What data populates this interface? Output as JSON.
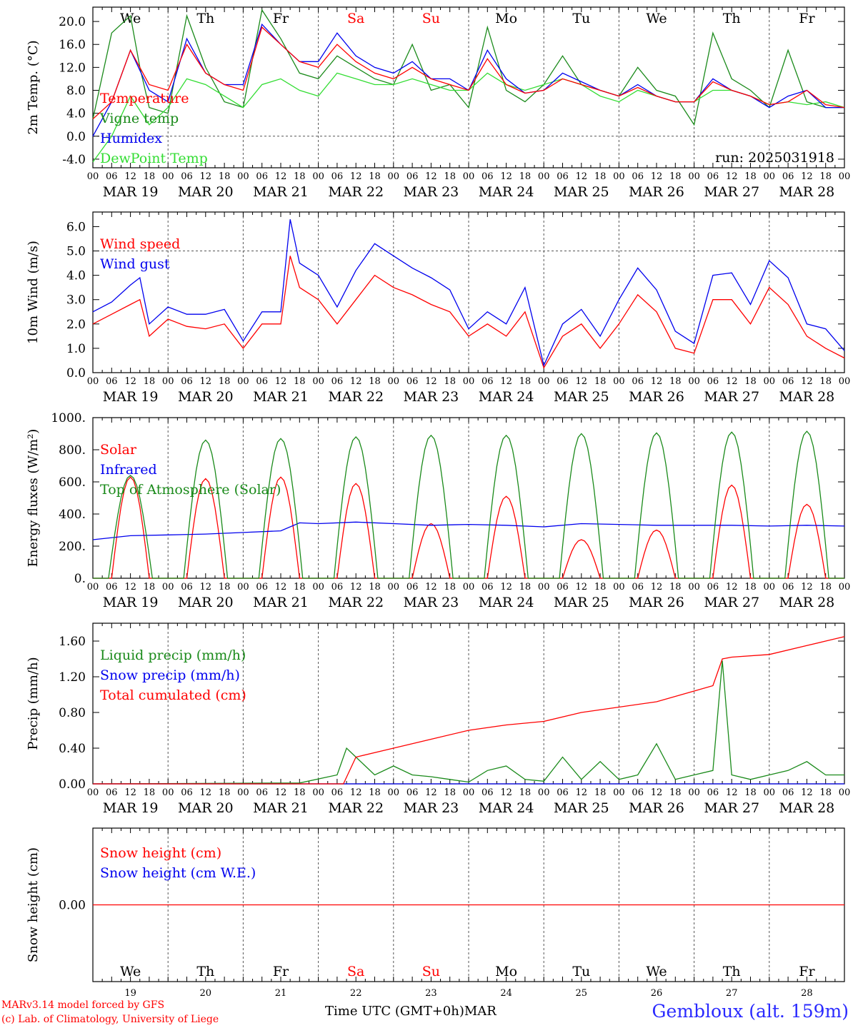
{
  "chart_data": [
    {
      "id": "temp",
      "type": "line",
      "ylabel_html": "2m Temp. (°C)",
      "yticks": [
        "20.0",
        "16.0",
        "12.0",
        "8.0",
        "4.0",
        "0.0",
        "-4.0"
      ],
      "ytick_values": [
        20,
        16,
        12,
        8,
        4,
        0,
        -4
      ],
      "ylim": [
        -5.5,
        22.5
      ],
      "ref_lines": [
        0
      ],
      "run_label": "run: 2025031918",
      "day_labels": [
        {
          "label": "We",
          "color": "#000000"
        },
        {
          "label": "Th",
          "color": "#000000"
        },
        {
          "label": "Fr",
          "color": "#000000"
        },
        {
          "label": "Sa",
          "color": "#ff0000"
        },
        {
          "label": "Su",
          "color": "#ff0000"
        },
        {
          "label": "Mo",
          "color": "#000000"
        },
        {
          "label": "Tu",
          "color": "#000000"
        },
        {
          "label": "We",
          "color": "#000000"
        },
        {
          "label": "Th",
          "color": "#000000"
        },
        {
          "label": "Fr",
          "color": "#000000"
        }
      ],
      "series": [
        {
          "name": "Vigne temp",
          "color": "#1a8a1a",
          "x": [
            0,
            6,
            12,
            15,
            18,
            24,
            30,
            36,
            42,
            48,
            54,
            60,
            66,
            72,
            78,
            84,
            90,
            96,
            102,
            108,
            114,
            120,
            126,
            132,
            138,
            144,
            150,
            156,
            162,
            168,
            174,
            180,
            186,
            192,
            198,
            204,
            210,
            216,
            222,
            228,
            234,
            240
          ],
          "y": [
            3,
            18,
            21,
            12,
            5,
            4,
            21,
            12,
            6,
            5,
            22,
            17,
            11,
            10,
            14,
            12,
            10,
            9,
            16,
            8,
            9,
            5,
            19,
            8,
            6,
            9,
            14,
            9,
            8,
            7,
            12,
            8,
            7,
            2,
            18,
            10,
            8,
            5,
            15,
            6,
            5,
            5
          ]
        },
        {
          "name": "DewPoint Temp",
          "color": "#33dd33",
          "x": [
            0,
            6,
            12,
            18,
            24,
            30,
            36,
            42,
            48,
            54,
            60,
            66,
            72,
            78,
            84,
            90,
            96,
            102,
            108,
            114,
            120,
            126,
            132,
            138,
            144,
            150,
            156,
            162,
            168,
            174,
            180,
            186,
            192,
            198,
            204,
            210,
            216,
            222,
            228,
            234,
            240
          ],
          "y": [
            -4.5,
            0,
            7,
            2,
            5,
            10,
            9,
            7,
            5,
            9,
            10,
            8,
            7,
            11,
            10,
            9,
            9,
            10,
            9,
            8,
            8,
            11,
            9,
            8,
            9,
            10,
            9,
            7,
            6,
            8,
            7,
            6,
            6,
            8,
            8,
            7,
            5.5,
            6,
            5.5,
            6,
            5
          ]
        },
        {
          "name": "Humidex",
          "color": "#0000ee",
          "x": [
            0,
            6,
            12,
            18,
            24,
            30,
            36,
            42,
            48,
            54,
            60,
            66,
            72,
            78,
            84,
            90,
            96,
            102,
            108,
            114,
            120,
            126,
            132,
            138,
            144,
            150,
            156,
            162,
            168,
            174,
            180,
            186,
            192,
            198,
            204,
            210,
            216,
            222,
            228,
            234,
            240
          ],
          "y": [
            0,
            6,
            15,
            8,
            6,
            17,
            11,
            9,
            9,
            19.5,
            16,
            13,
            13,
            18,
            14,
            12,
            11,
            13,
            10,
            10,
            8,
            15,
            10,
            7.5,
            8,
            11,
            9.5,
            8,
            7,
            9,
            7,
            6,
            6,
            10,
            8,
            7,
            5,
            7,
            8,
            5,
            5
          ]
        },
        {
          "name": "Temperature",
          "color": "#ff0000",
          "x": [
            0,
            6,
            12,
            18,
            24,
            30,
            36,
            42,
            48,
            54,
            60,
            66,
            72,
            78,
            84,
            90,
            96,
            102,
            108,
            114,
            120,
            126,
            132,
            138,
            144,
            150,
            156,
            162,
            168,
            174,
            180,
            186,
            192,
            198,
            204,
            210,
            216,
            222,
            228,
            234,
            240
          ],
          "y": [
            3,
            6,
            15,
            9,
            8,
            16,
            11,
            9,
            8,
            19,
            16,
            13,
            12,
            16,
            13,
            11,
            10,
            12,
            10,
            9,
            8,
            13.5,
            9,
            7.5,
            8,
            10,
            9,
            8,
            7,
            8.5,
            7,
            6,
            6,
            9.5,
            8,
            7,
            5.5,
            6,
            8,
            5.5,
            5
          ]
        }
      ]
    },
    {
      "id": "wind",
      "type": "line",
      "ylabel_html": "10m Wind (m/s)",
      "yticks": [
        "6.0",
        "5.0",
        "4.0",
        "3.0",
        "2.0",
        "1.0",
        "0.0"
      ],
      "ytick_values": [
        6,
        5,
        4,
        3,
        2,
        1,
        0
      ],
      "ylim": [
        0,
        6.6
      ],
      "ref_lines": [
        5
      ],
      "series": [
        {
          "name": "Wind speed",
          "color": "#ff0000",
          "x": [
            0,
            6,
            12,
            15,
            18,
            24,
            30,
            36,
            42,
            48,
            54,
            60,
            63,
            66,
            72,
            78,
            84,
            90,
            96,
            102,
            108,
            114,
            120,
            126,
            132,
            138,
            144,
            150,
            156,
            162,
            168,
            174,
            180,
            186,
            192,
            198,
            204,
            210,
            216,
            222,
            228,
            234,
            240
          ],
          "y": [
            2.0,
            2.4,
            2.8,
            3.0,
            1.5,
            2.2,
            1.9,
            1.8,
            2.0,
            1.0,
            2.0,
            2.0,
            4.8,
            3.5,
            3.0,
            2.0,
            3.0,
            4.0,
            3.5,
            3.2,
            2.8,
            2.5,
            1.5,
            2.0,
            1.5,
            2.5,
            0.2,
            1.5,
            2.0,
            1.0,
            2.0,
            3.2,
            2.5,
            1.0,
            0.8,
            3.0,
            3.0,
            2.0,
            3.5,
            2.8,
            1.5,
            1.0,
            0.6
          ]
        },
        {
          "name": "Wind gust",
          "color": "#0000ee",
          "x": [
            0,
            6,
            12,
            15,
            18,
            24,
            30,
            36,
            42,
            48,
            54,
            60,
            63,
            66,
            72,
            78,
            84,
            90,
            96,
            102,
            108,
            114,
            120,
            126,
            132,
            138,
            144,
            150,
            156,
            162,
            168,
            174,
            180,
            186,
            192,
            198,
            204,
            210,
            216,
            222,
            228,
            234,
            240
          ],
          "y": [
            2.5,
            2.9,
            3.6,
            3.9,
            2.0,
            2.7,
            2.4,
            2.4,
            2.6,
            1.3,
            2.5,
            2.5,
            6.3,
            4.5,
            4.0,
            2.7,
            4.2,
            5.3,
            4.8,
            4.3,
            3.9,
            3.4,
            1.8,
            2.5,
            2.0,
            3.5,
            0.3,
            2.0,
            2.6,
            1.5,
            3.0,
            4.3,
            3.4,
            1.7,
            1.2,
            4.0,
            4.1,
            2.8,
            4.6,
            3.9,
            2.0,
            1.8,
            0.9
          ]
        }
      ]
    },
    {
      "id": "energy",
      "type": "line",
      "ylabel_html": "Energy fluxes (W/m²)",
      "yticks": [
        "1000.",
        "800.",
        "600.",
        "400.",
        "200.",
        "0."
      ],
      "ytick_values": [
        1000,
        800,
        600,
        400,
        200,
        0
      ],
      "ylim": [
        0,
        1000
      ],
      "ref_lines": [],
      "solar_peaks": [
        630,
        620,
        630,
        590,
        340,
        510,
        240,
        300,
        580,
        460
      ],
      "toa_peaks": [
        640,
        860,
        870,
        880,
        890,
        890,
        900,
        905,
        910,
        915
      ],
      "series": [
        {
          "name": "Solar",
          "color": "#ff0000"
        },
        {
          "name": "Infrared",
          "color": "#0000ee",
          "x": [
            0,
            12,
            24,
            36,
            48,
            60,
            66,
            72,
            84,
            96,
            108,
            120,
            132,
            144,
            156,
            168,
            180,
            192,
            204,
            216,
            228,
            240
          ],
          "y": [
            240,
            265,
            270,
            275,
            285,
            295,
            345,
            340,
            350,
            340,
            330,
            335,
            330,
            320,
            340,
            335,
            330,
            330,
            330,
            325,
            330,
            325
          ]
        },
        {
          "name": "Top of Atmosphere (Solar)",
          "color": "#1a8a1a"
        }
      ]
    },
    {
      "id": "precip",
      "type": "line",
      "ylabel_html": "Precip (mm/h)",
      "yticks": [
        "1.60",
        "1.20",
        "0.80",
        "0.40",
        "0.00"
      ],
      "ytick_values": [
        1.6,
        1.2,
        0.8,
        0.4,
        0.0
      ],
      "ylim": [
        0,
        1.8
      ],
      "ref_lines": [],
      "series": [
        {
          "name": "Liquid precip (mm/h)",
          "color": "#1a8a1a",
          "x": [
            0,
            66,
            78,
            81,
            84,
            90,
            96,
            102,
            108,
            114,
            120,
            126,
            132,
            138,
            144,
            150,
            156,
            162,
            168,
            174,
            180,
            186,
            192,
            198,
            201,
            204,
            210,
            216,
            222,
            228,
            234,
            240
          ],
          "y": [
            0,
            0.01,
            0.1,
            0.4,
            0.3,
            0.1,
            0.2,
            0.1,
            0.08,
            0.05,
            0.02,
            0.15,
            0.2,
            0.05,
            0.03,
            0.3,
            0.05,
            0.25,
            0.05,
            0.1,
            0.45,
            0.05,
            0.1,
            0.15,
            1.38,
            0.1,
            0.05,
            0.1,
            0.15,
            0.25,
            0.1,
            0.1
          ]
        },
        {
          "name": "Snow precip (mm/h)",
          "color": "#0000ee",
          "x": [
            0,
            240
          ],
          "y": [
            0,
            0
          ]
        },
        {
          "name": "Total cumulated (cm)",
          "color": "#ff0000",
          "x": [
            0,
            80,
            84,
            96,
            108,
            120,
            132,
            144,
            156,
            168,
            180,
            192,
            198,
            201,
            204,
            216,
            228,
            234,
            240
          ],
          "y": [
            0,
            0,
            0.3,
            0.4,
            0.5,
            0.6,
            0.66,
            0.7,
            0.8,
            0.86,
            0.92,
            1.04,
            1.1,
            1.4,
            1.42,
            1.45,
            1.55,
            1.6,
            1.65
          ]
        }
      ]
    },
    {
      "id": "snow",
      "type": "line",
      "ylabel_html": "Snow height (cm)",
      "yticks": [
        "0.00"
      ],
      "ytick_values": [
        0
      ],
      "ylim": [
        -1,
        1
      ],
      "ref_lines": [],
      "series": [
        {
          "name": "Snow height (cm)",
          "color": "#ff0000",
          "x": [
            0,
            240
          ],
          "y": [
            0,
            0
          ]
        },
        {
          "name": "Snow height (cm W.E.)",
          "color": "#0000ee"
        }
      ],
      "day_labels": [
        {
          "label": "We",
          "color": "#000000"
        },
        {
          "label": "Th",
          "color": "#000000"
        },
        {
          "label": "Fr",
          "color": "#000000"
        },
        {
          "label": "Sa",
          "color": "#ff0000"
        },
        {
          "label": "Su",
          "color": "#ff0000"
        },
        {
          "label": "Mo",
          "color": "#000000"
        },
        {
          "label": "Tu",
          "color": "#000000"
        },
        {
          "label": "We",
          "color": "#000000"
        },
        {
          "label": "Th",
          "color": "#000000"
        },
        {
          "label": "Fr",
          "color": "#000000"
        }
      ],
      "day_numbers": [
        "19",
        "20",
        "21",
        "22",
        "23",
        "24",
        "25",
        "26",
        "27",
        "28"
      ]
    }
  ],
  "x_axis": {
    "hour_ticks": [
      "00",
      "06",
      "12",
      "18"
    ],
    "final_tick": "00",
    "date_labels": [
      "MAR 19",
      "MAR 20",
      "MAR 21",
      "MAR 22",
      "MAR 23",
      "MAR 24",
      "MAR 25",
      "MAR 26",
      "MAR 27",
      "MAR 28"
    ]
  },
  "footer": {
    "model": "MARv3.14 model forced by GFS",
    "copyright": "(c) Lab. of Climatology, University of Liege",
    "axis_label": "Time UTC (GMT+0h)MAR",
    "station": "Gembloux (alt. 159m)"
  }
}
